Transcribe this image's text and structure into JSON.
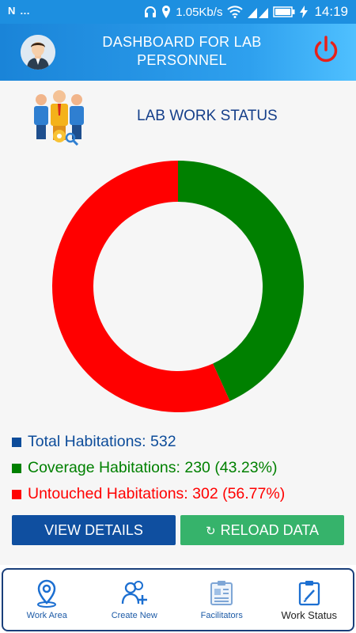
{
  "status_bar": {
    "left_text": "N …",
    "speed": "1.05Kb/s",
    "time": "14:19"
  },
  "header": {
    "title": "DASHBOARD FOR LAB PERSONNEL"
  },
  "section": {
    "title": "LAB WORK STATUS"
  },
  "chart_data": {
    "type": "pie",
    "donut": true,
    "slices": [
      {
        "label": "Coverage Habitations",
        "value": 230,
        "percent": 43.23,
        "color": "#008000"
      },
      {
        "label": "Untouched Habitations",
        "value": 302,
        "percent": 56.77,
        "color": "#ff0000"
      }
    ],
    "total": 532
  },
  "legend": [
    {
      "text": "Total Habitations: 532",
      "color": "#0d4c9a"
    },
    {
      "text": "Coverage Habitations: 230 (43.23%)",
      "color": "#008000"
    },
    {
      "text": "Untouched Habitations: 302 (56.77%)",
      "color": "#ff0000"
    }
  ],
  "buttons": {
    "view_details": "VIEW DETAILS",
    "reload_data": "RELOAD DATA"
  },
  "nav": [
    {
      "label": "Work Area",
      "icon": "location-pin-icon"
    },
    {
      "label": "Create New",
      "icon": "add-user-icon"
    },
    {
      "label": "Facilitators",
      "icon": "id-card-icon"
    },
    {
      "label": "Work Status",
      "icon": "clipboard-icon",
      "active": true
    }
  ]
}
